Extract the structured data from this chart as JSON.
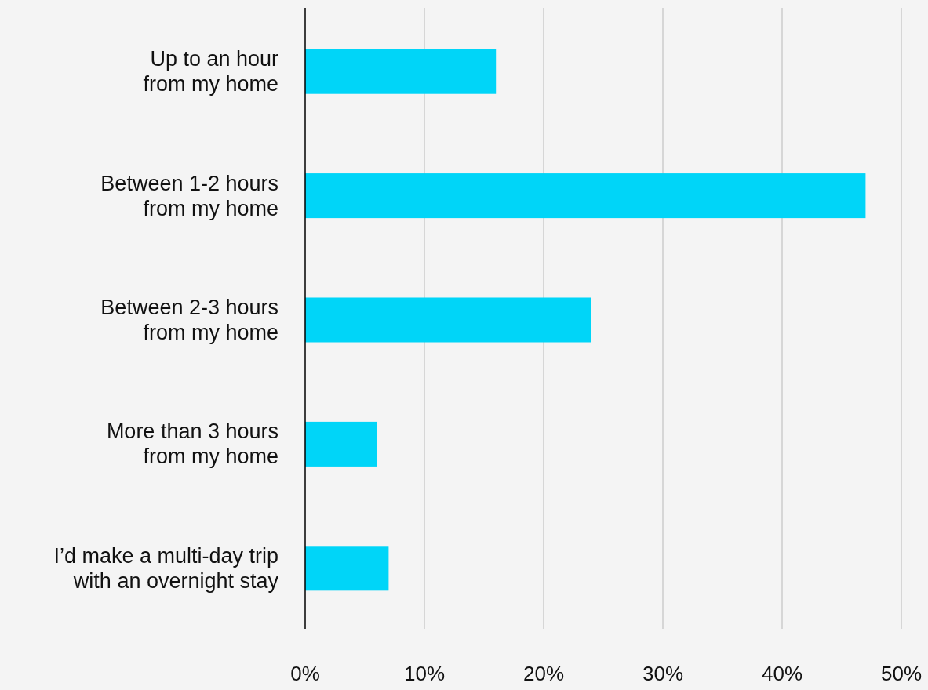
{
  "chart_data": {
    "type": "bar",
    "orientation": "horizontal",
    "categories": [
      "Up to an hour from my home",
      "Between 1-2 hours from my home",
      "Between 2-3 hours from my home",
      "More than 3 hours from my home",
      "I’d make a multi-day trip with an overnight stay"
    ],
    "values": [
      16,
      47,
      24,
      6,
      7
    ],
    "color": "#00d5f8",
    "xlim": [
      0,
      50
    ],
    "xticks": [
      {
        "value": 0,
        "label": "0%"
      },
      {
        "value": 10,
        "label": "10%"
      },
      {
        "value": 20,
        "label": "20%"
      },
      {
        "value": 30,
        "label": "30%"
      },
      {
        "value": 40,
        "label": "40%"
      },
      {
        "value": 50,
        "label": "50%"
      }
    ],
    "grid": "x"
  }
}
